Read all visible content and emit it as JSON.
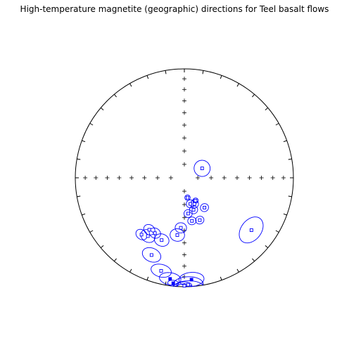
{
  "chart_data": {
    "type": "scatter",
    "projection": "equal-area stereonet",
    "title": "High-temperature magnetite (geographic) directions for Teel basalt flows",
    "grid": false,
    "legend": "none",
    "colors": {
      "points": "#0000ff",
      "circles": "#0000ff",
      "net": "#000000"
    },
    "points": [
      {
        "dec": 62,
        "inc": 75,
        "a95": 6,
        "filled": false
      },
      {
        "dec": 171,
        "inc": 75,
        "a95": 2,
        "filled": false
      },
      {
        "dec": 167,
        "inc": 70,
        "a95": 3,
        "filled": false
      },
      {
        "dec": 159,
        "inc": 69,
        "a95": 3,
        "filled": false
      },
      {
        "dec": 154,
        "inc": 71,
        "a95": 2,
        "filled": false
      },
      {
        "dec": 164,
        "inc": 65,
        "a95": 3,
        "filled": false
      },
      {
        "dec": 146,
        "inc": 63,
        "a95": 3,
        "filled": false
      },
      {
        "dec": 174,
        "inc": 63,
        "a95": 3,
        "filled": false
      },
      {
        "dec": 160,
        "inc": 56,
        "a95": 3,
        "filled": false
      },
      {
        "dec": 170,
        "inc": 57,
        "a95": 3,
        "filled": false
      },
      {
        "dec": 184,
        "inc": 52,
        "a95": 4,
        "filled": false
      },
      {
        "dec": 214,
        "inc": 42,
        "a95": 4,
        "filled": false
      },
      {
        "dec": 208,
        "inc": 42,
        "a95": 4,
        "filled": false
      },
      {
        "dec": 212,
        "inc": 37,
        "a95": 5,
        "filled": false
      },
      {
        "dec": 200,
        "inc": 39,
        "a95": 5,
        "filled": false
      },
      {
        "dec": 217,
        "inc": 35,
        "a95": 4,
        "filled": false
      },
      {
        "dec": 203,
        "inc": 24,
        "a95": 6,
        "filled": false
      },
      {
        "dec": 187,
        "inc": 46,
        "a95": 5,
        "filled": false
      },
      {
        "dec": 194,
        "inc": 13,
        "a95": 6,
        "filled": false
      },
      {
        "dec": 128,
        "inc": 23,
        "a95": 9,
        "filled": false
      },
      {
        "dec": 188,
        "inc": 7,
        "a95": 6,
        "filled": true
      },
      {
        "dec": 176,
        "inc": 7,
        "a95": 7,
        "filled": true
      },
      {
        "dec": 186,
        "inc": 3,
        "a95": 3,
        "filled": true
      },
      {
        "dec": 178,
        "inc": 2,
        "a95": 8,
        "filled": false
      },
      {
        "dec": 180,
        "inc": -1,
        "a95": 4,
        "filled": false
      }
    ]
  }
}
